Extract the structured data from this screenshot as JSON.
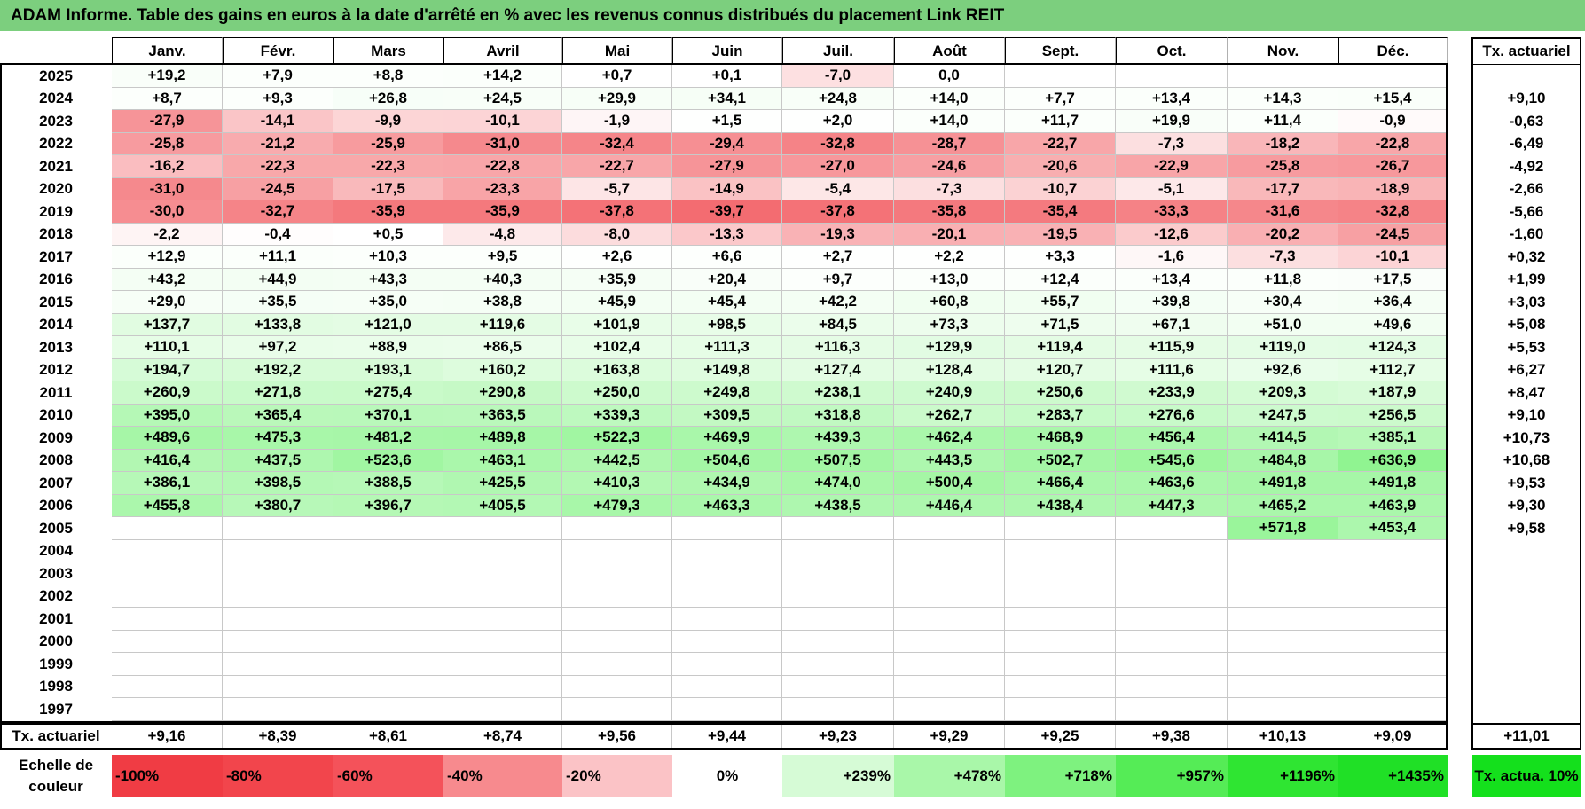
{
  "title": "ADAM Informe. Table des gains en euros à la date d'arrêté en % avec les revenus connus distribués du placement Link REIT",
  "months": [
    "Janv.",
    "Févr.",
    "Mars",
    "Avril",
    "Mai",
    "Juin",
    "Juil.",
    "Août",
    "Sept.",
    "Oct.",
    "Nov.",
    "Déc."
  ],
  "annual_header": "Tx. actuariel",
  "rows": [
    {
      "year": "2025",
      "values": [
        "+19,2",
        "+7,9",
        "+8,8",
        "+14,2",
        "+0,7",
        "+0,1",
        "-7,0",
        "0,0",
        "",
        "",
        "",
        ""
      ],
      "annual": ""
    },
    {
      "year": "2024",
      "values": [
        "+8,7",
        "+9,3",
        "+26,8",
        "+24,5",
        "+29,9",
        "+34,1",
        "+24,8",
        "+14,0",
        "+7,7",
        "+13,4",
        "+14,3",
        "+15,4"
      ],
      "annual": "+9,10"
    },
    {
      "year": "2023",
      "values": [
        "-27,9",
        "-14,1",
        "-9,9",
        "-10,1",
        "-1,9",
        "+1,5",
        "+2,0",
        "+14,0",
        "+11,7",
        "+19,9",
        "+11,4",
        "-0,9"
      ],
      "annual": "-0,63"
    },
    {
      "year": "2022",
      "values": [
        "-25,8",
        "-21,2",
        "-25,9",
        "-31,0",
        "-32,4",
        "-29,4",
        "-32,8",
        "-28,7",
        "-22,7",
        "-7,3",
        "-18,2",
        "-22,8"
      ],
      "annual": "-6,49"
    },
    {
      "year": "2021",
      "values": [
        "-16,2",
        "-22,3",
        "-22,3",
        "-22,8",
        "-22,7",
        "-27,9",
        "-27,0",
        "-24,6",
        "-20,6",
        "-22,9",
        "-25,8",
        "-26,7"
      ],
      "annual": "-4,92"
    },
    {
      "year": "2020",
      "values": [
        "-31,0",
        "-24,5",
        "-17,5",
        "-23,3",
        "-5,7",
        "-14,9",
        "-5,4",
        "-7,3",
        "-10,7",
        "-5,1",
        "-17,7",
        "-18,9"
      ],
      "annual": "-2,66"
    },
    {
      "year": "2019",
      "values": [
        "-30,0",
        "-32,7",
        "-35,9",
        "-35,9",
        "-37,8",
        "-39,7",
        "-37,8",
        "-35,8",
        "-35,4",
        "-33,3",
        "-31,6",
        "-32,8"
      ],
      "annual": "-5,66"
    },
    {
      "year": "2018",
      "values": [
        "-2,2",
        "-0,4",
        "+0,5",
        "-4,8",
        "-8,0",
        "-13,3",
        "-19,3",
        "-20,1",
        "-19,5",
        "-12,6",
        "-20,2",
        "-24,5"
      ],
      "annual": "-1,60"
    },
    {
      "year": "2017",
      "values": [
        "+12,9",
        "+11,1",
        "+10,3",
        "+9,5",
        "+2,6",
        "+6,6",
        "+2,7",
        "+2,2",
        "+3,3",
        "-1,6",
        "-7,3",
        "-10,1"
      ],
      "annual": "+0,32"
    },
    {
      "year": "2016",
      "values": [
        "+43,2",
        "+44,9",
        "+43,3",
        "+40,3",
        "+35,9",
        "+20,4",
        "+9,7",
        "+13,0",
        "+12,4",
        "+13,4",
        "+11,8",
        "+17,5"
      ],
      "annual": "+1,99"
    },
    {
      "year": "2015",
      "values": [
        "+29,0",
        "+35,5",
        "+35,0",
        "+38,8",
        "+45,9",
        "+45,4",
        "+42,2",
        "+60,8",
        "+55,7",
        "+39,8",
        "+30,4",
        "+36,4"
      ],
      "annual": "+3,03"
    },
    {
      "year": "2014",
      "values": [
        "+137,7",
        "+133,8",
        "+121,0",
        "+119,6",
        "+101,9",
        "+98,5",
        "+84,5",
        "+73,3",
        "+71,5",
        "+67,1",
        "+51,0",
        "+49,6"
      ],
      "annual": "+5,08"
    },
    {
      "year": "2013",
      "values": [
        "+110,1",
        "+97,2",
        "+88,9",
        "+86,5",
        "+102,4",
        "+111,3",
        "+116,3",
        "+129,9",
        "+119,4",
        "+115,9",
        "+119,0",
        "+124,3"
      ],
      "annual": "+5,53"
    },
    {
      "year": "2012",
      "values": [
        "+194,7",
        "+192,2",
        "+193,1",
        "+160,2",
        "+163,8",
        "+149,8",
        "+127,4",
        "+128,4",
        "+120,7",
        "+111,6",
        "+92,6",
        "+112,7"
      ],
      "annual": "+6,27"
    },
    {
      "year": "2011",
      "values": [
        "+260,9",
        "+271,8",
        "+275,4",
        "+290,8",
        "+250,0",
        "+249,8",
        "+238,1",
        "+240,9",
        "+250,6",
        "+233,9",
        "+209,3",
        "+187,9"
      ],
      "annual": "+8,47"
    },
    {
      "year": "2010",
      "values": [
        "+395,0",
        "+365,4",
        "+370,1",
        "+363,5",
        "+339,3",
        "+309,5",
        "+318,8",
        "+262,7",
        "+283,7",
        "+276,6",
        "+247,5",
        "+256,5"
      ],
      "annual": "+9,10"
    },
    {
      "year": "2009",
      "values": [
        "+489,6",
        "+475,3",
        "+481,2",
        "+489,8",
        "+522,3",
        "+469,9",
        "+439,3",
        "+462,4",
        "+468,9",
        "+456,4",
        "+414,5",
        "+385,1"
      ],
      "annual": "+10,73"
    },
    {
      "year": "2008",
      "values": [
        "+416,4",
        "+437,5",
        "+523,6",
        "+463,1",
        "+442,5",
        "+504,6",
        "+507,5",
        "+443,5",
        "+502,7",
        "+545,6",
        "+484,8",
        "+636,9"
      ],
      "annual": "+10,68"
    },
    {
      "year": "2007",
      "values": [
        "+386,1",
        "+398,5",
        "+388,5",
        "+425,5",
        "+410,3",
        "+434,9",
        "+474,0",
        "+500,4",
        "+466,4",
        "+463,6",
        "+491,8",
        "+491,8"
      ],
      "annual": "+9,53"
    },
    {
      "year": "2006",
      "values": [
        "+455,8",
        "+380,7",
        "+396,7",
        "+405,5",
        "+479,3",
        "+463,3",
        "+438,5",
        "+446,4",
        "+438,4",
        "+447,3",
        "+465,2",
        "+463,9"
      ],
      "annual": "+9,30"
    },
    {
      "year": "2005",
      "values": [
        "",
        "",
        "",
        "",
        "",
        "",
        "",
        "",
        "",
        "",
        "+571,8",
        "+453,4"
      ],
      "annual": "+9,58"
    },
    {
      "year": "2004",
      "values": [
        "",
        "",
        "",
        "",
        "",
        "",
        "",
        "",
        "",
        "",
        "",
        ""
      ],
      "annual": ""
    },
    {
      "year": "2003",
      "values": [
        "",
        "",
        "",
        "",
        "",
        "",
        "",
        "",
        "",
        "",
        "",
        ""
      ],
      "annual": ""
    },
    {
      "year": "2002",
      "values": [
        "",
        "",
        "",
        "",
        "",
        "",
        "",
        "",
        "",
        "",
        "",
        ""
      ],
      "annual": ""
    },
    {
      "year": "2001",
      "values": [
        "",
        "",
        "",
        "",
        "",
        "",
        "",
        "",
        "",
        "",
        "",
        ""
      ],
      "annual": ""
    },
    {
      "year": "2000",
      "values": [
        "",
        "",
        "",
        "",
        "",
        "",
        "",
        "",
        "",
        "",
        "",
        ""
      ],
      "annual": ""
    },
    {
      "year": "1999",
      "values": [
        "",
        "",
        "",
        "",
        "",
        "",
        "",
        "",
        "",
        "",
        "",
        ""
      ],
      "annual": ""
    },
    {
      "year": "1998",
      "values": [
        "",
        "",
        "",
        "",
        "",
        "",
        "",
        "",
        "",
        "",
        "",
        ""
      ],
      "annual": ""
    },
    {
      "year": "1997",
      "values": [
        "",
        "",
        "",
        "",
        "",
        "",
        "",
        "",
        "",
        "",
        "",
        ""
      ],
      "annual": ""
    }
  ],
  "totals_label": "Tx. actuariel",
  "totals": [
    "+9,16",
    "+8,39",
    "+8,61",
    "+8,74",
    "+9,56",
    "+9,44",
    "+9,23",
    "+9,29",
    "+9,25",
    "+9,38",
    "+10,13",
    "+9,09"
  ],
  "totals_annual": "+11,01",
  "scale_label": "Echelle de couleur",
  "scale": [
    {
      "label": "-100%",
      "color": "#f03c44",
      "align": "left"
    },
    {
      "label": "-80%",
      "color": "#f2454c",
      "align": "left"
    },
    {
      "label": "-60%",
      "color": "#f4525a",
      "align": "left"
    },
    {
      "label": "-40%",
      "color": "#f78a8e",
      "align": "left"
    },
    {
      "label": "-20%",
      "color": "#fbc3c6",
      "align": "left"
    },
    {
      "label": "0%",
      "color": "#ffffff",
      "align": "center"
    },
    {
      "label": "+239%",
      "color": "#d6fbd6",
      "align": "right"
    },
    {
      "label": "+478%",
      "color": "#a9f7a9",
      "align": "right"
    },
    {
      "label": "+718%",
      "color": "#7ef27f",
      "align": "right"
    },
    {
      "label": "+957%",
      "color": "#55ec56",
      "align": "right"
    },
    {
      "label": "+1196%",
      "color": "#2fe532",
      "align": "right"
    },
    {
      "label": "+1435%",
      "color": "#20e026",
      "align": "right"
    }
  ],
  "scale_annual": {
    "label": "Tx. actua. 10%",
    "color": "#14e01c"
  },
  "colors": {
    "title_bg": "#7ccf7e",
    "neg_max": "#f03c44",
    "pos_max": "#20e026"
  }
}
